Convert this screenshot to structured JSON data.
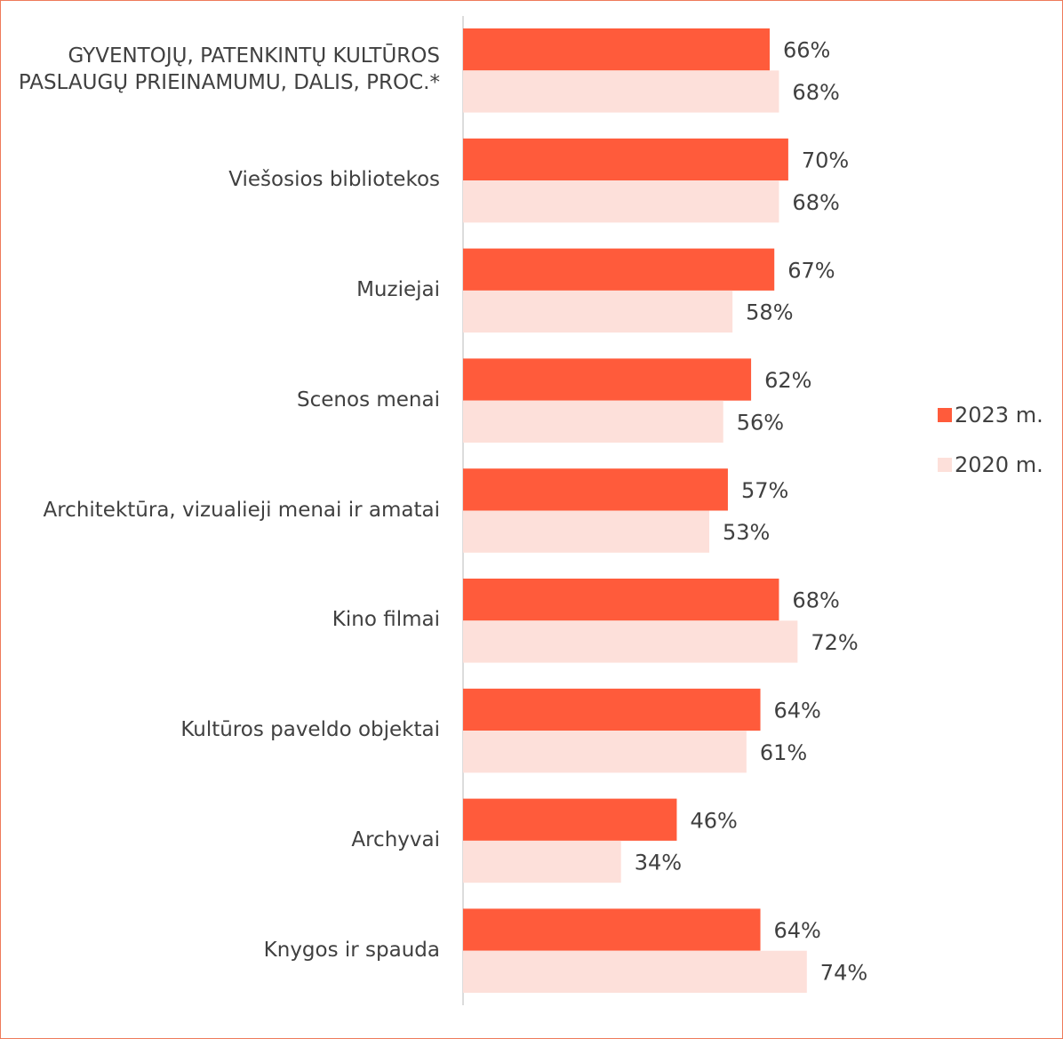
{
  "chart_data": {
    "type": "bar",
    "orientation": "horizontal",
    "categories": [
      "GYVENTOJŲ, PATENKINTŲ KULTŪROS PASLAUGŲ PRIEINAMUMU, DALIS, PROC.*",
      "Viešosios bibliotekos",
      "Muziejai",
      "Scenos menai",
      "Architektūra, vizualieji menai ir amatai",
      "Kino filmai",
      "Kultūros paveldo objektai",
      "Archyvai",
      "Knygos ir spauda"
    ],
    "series": [
      {
        "name": "2023 m.",
        "color": "#ff5b3b",
        "values": [
          66,
          70,
          67,
          62,
          57,
          68,
          64,
          46,
          64
        ],
        "value_labels": [
          "66%",
          "70%",
          "67%",
          "62%",
          "57%",
          "68%",
          "64%",
          "46%",
          "64%"
        ]
      },
      {
        "name": "2020 m.",
        "color": "#fde0da",
        "values": [
          68,
          68,
          58,
          56,
          53,
          72,
          61,
          34,
          74
        ],
        "value_labels": [
          "68%",
          "68%",
          "58%",
          "56%",
          "53%",
          "72%",
          "61%",
          "34%",
          "74%"
        ]
      }
    ],
    "xlim": [
      0,
      100
    ],
    "legend": "right"
  }
}
